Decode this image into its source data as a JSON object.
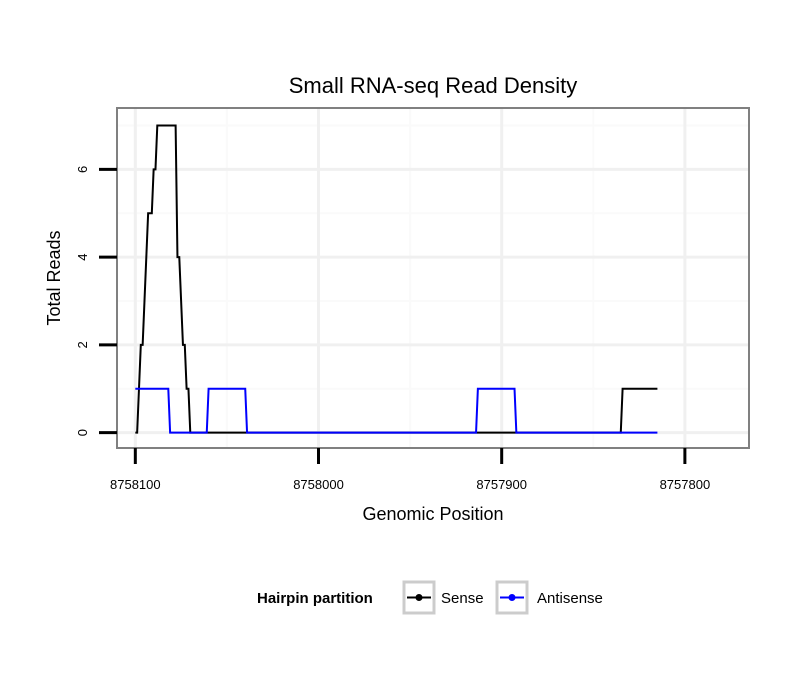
{
  "chart_data": {
    "type": "line",
    "title": "Small RNA-seq Read Density",
    "xlabel": "Genomic Position",
    "ylabel": "Total Reads",
    "x_reversed": true,
    "xlim": [
      8758110,
      8757765
    ],
    "ylim": [
      -0.35,
      7.4
    ],
    "x_ticks": [
      8758100,
      8758000,
      8757900,
      8757800
    ],
    "x_tick_labels": [
      "8758100",
      "8758000",
      "8757900",
      "8757800"
    ],
    "y_ticks": [
      0,
      2,
      4,
      6
    ],
    "y_tick_labels": [
      "0",
      "2",
      "4",
      "6"
    ],
    "grid": true,
    "legend": {
      "title": "Hairpin partition",
      "position": "bottom",
      "entries": [
        "Sense",
        "Antisense"
      ]
    },
    "series": [
      {
        "name": "Sense",
        "color": "#000000",
        "x": [
          8758100,
          8758099,
          8758097,
          8758096,
          8758095,
          8758094,
          8758093,
          8758092,
          8758091,
          8758090,
          8758089,
          8758088,
          8758087,
          8758086,
          8758085,
          8758084,
          8758083,
          8758082,
          8758081,
          8758080,
          8758079,
          8758078,
          8758077,
          8758076,
          8758075,
          8758074,
          8758073,
          8758072,
          8758071,
          8758070,
          8758069,
          8758068,
          8758067,
          8758066,
          8758065,
          8757835,
          8757834,
          8757833,
          8757815
        ],
        "y": [
          0,
          0,
          2,
          2,
          3,
          4,
          5,
          5,
          5,
          6,
          6,
          7,
          7,
          7,
          7,
          7,
          7,
          7,
          7,
          7,
          7,
          7,
          4,
          4,
          3,
          2,
          2,
          1,
          1,
          0,
          0,
          0,
          0,
          0,
          0,
          0,
          1,
          1,
          1
        ]
      },
      {
        "name": "Antisense",
        "color": "#0000ff",
        "x": [
          8758100,
          8758082,
          8758081,
          8758065,
          8758064,
          8758061,
          8758060,
          8758040,
          8758039,
          8757914,
          8757913,
          8757893,
          8757892,
          8757815
        ],
        "y": [
          1,
          1,
          0,
          0,
          0,
          0,
          1,
          1,
          0,
          0,
          1,
          1,
          0,
          0
        ]
      }
    ]
  }
}
